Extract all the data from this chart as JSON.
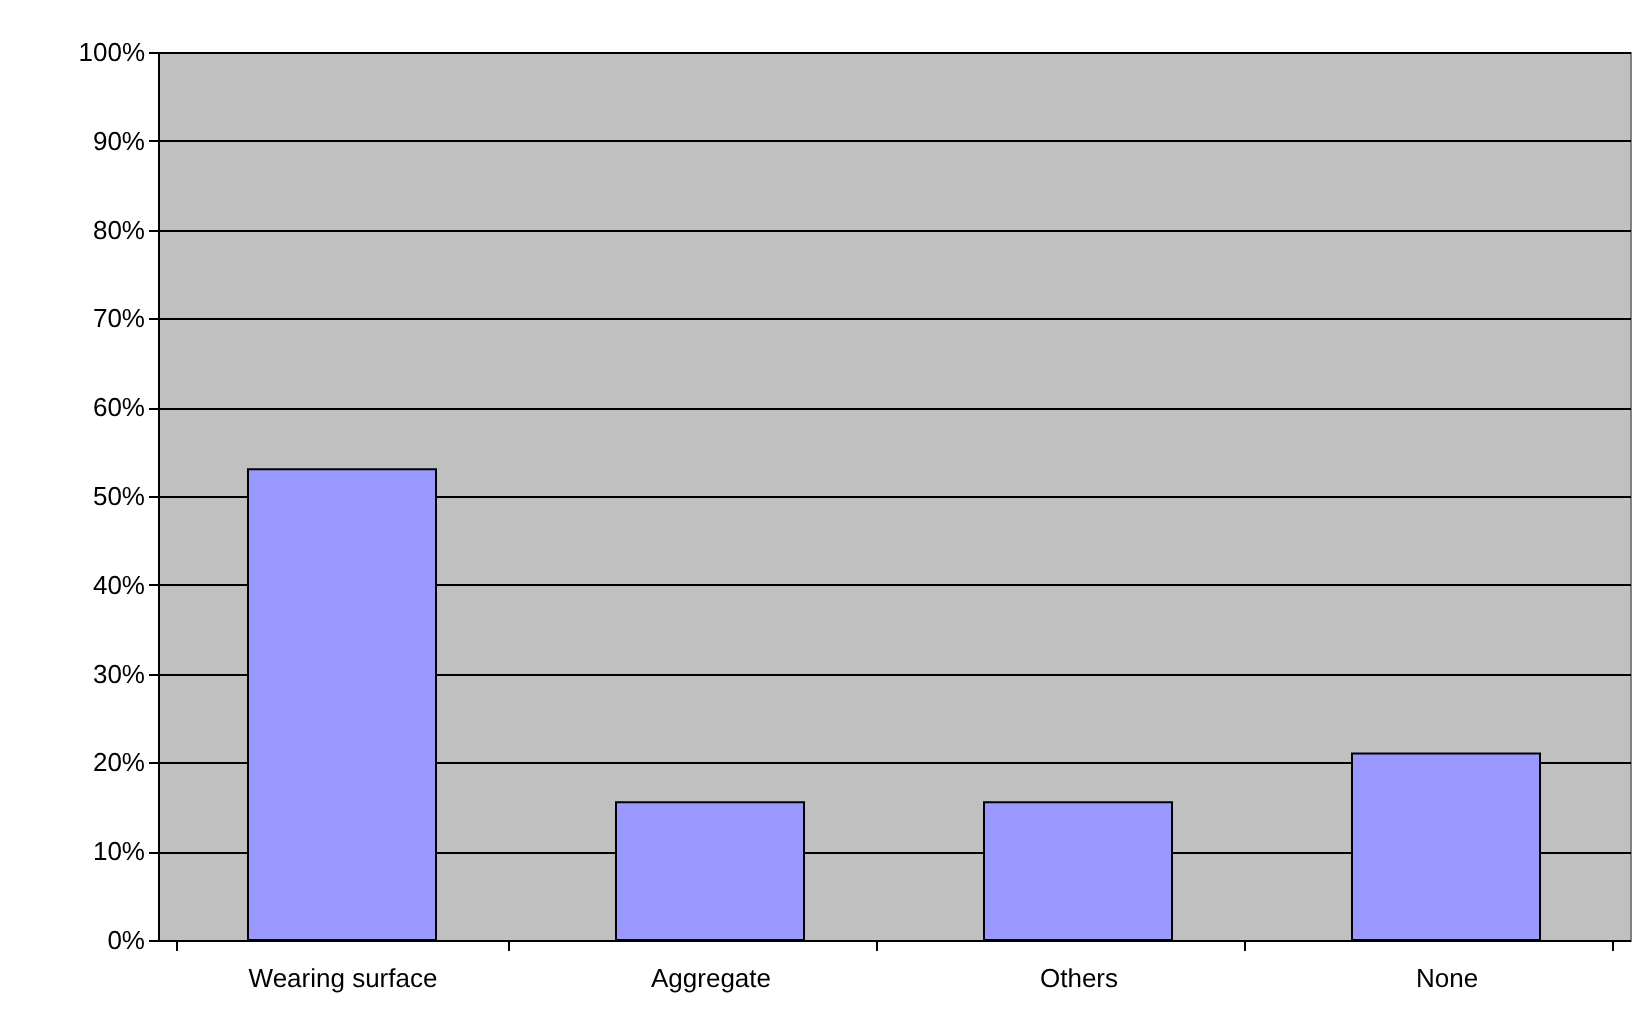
{
  "chart_data": {
    "type": "bar",
    "categories": [
      "Wearing surface",
      "Aggregate",
      "Others",
      "None"
    ],
    "values": [
      53,
      15.5,
      15.5,
      21
    ],
    "color": "#9999ff",
    "ylim": [
      0,
      100
    ],
    "yticks": [
      {
        "value": 0,
        "label": "0%"
      },
      {
        "value": 10,
        "label": "10%"
      },
      {
        "value": 20,
        "label": "20%"
      },
      {
        "value": 30,
        "label": "30%"
      },
      {
        "value": 40,
        "label": "40%"
      },
      {
        "value": 50,
        "label": "50%"
      },
      {
        "value": 60,
        "label": "60%"
      },
      {
        "value": 70,
        "label": "70%"
      },
      {
        "value": 80,
        "label": "80%"
      },
      {
        "value": 90,
        "label": "90%"
      },
      {
        "value": 100,
        "label": "100%"
      }
    ],
    "grid": "y"
  }
}
